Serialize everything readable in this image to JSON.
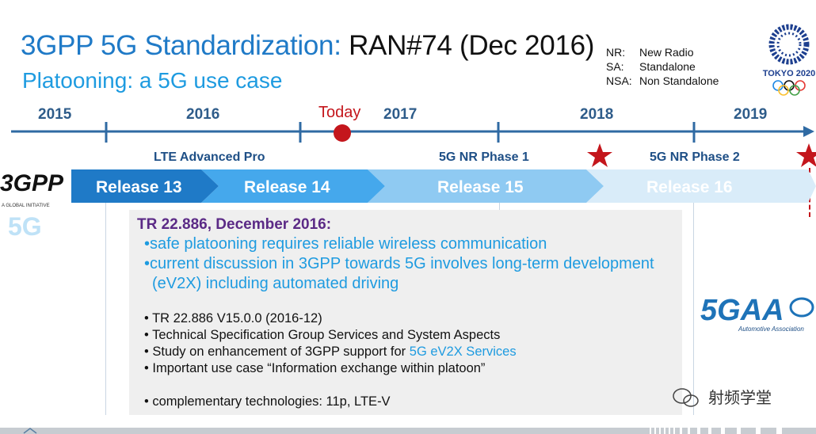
{
  "slide": {
    "title_blue": "3GPP 5G Standardization:",
    "title_black": "RAN#74 (Dec 2016)",
    "subtitle": "Platooning: a 5G use case"
  },
  "abbreviations": [
    {
      "key": "NR:",
      "value": "New Radio"
    },
    {
      "key": "SA:",
      "value": "Standalone"
    },
    {
      "key": "NSA:",
      "value": "Non Standalone"
    }
  ],
  "olympic_logo_text": "TOKYO 2020",
  "timeline": {
    "years": [
      "2015",
      "2016",
      "2017",
      "2018",
      "2019"
    ],
    "today_label": "Today",
    "phases": [
      "LTE Advanced Pro",
      "5G NR Phase 1",
      "5G NR Phase 2"
    ],
    "releases": [
      "Release 13",
      "Release 14",
      "Release 15",
      "Release 16"
    ]
  },
  "logo_3gpp": {
    "main": "3GPP",
    "tagline": "A GLOBAL INITIATIVE",
    "mark": "5G"
  },
  "info": {
    "heading": "TR 22.886, December 2016:",
    "blue_bullets": [
      "•safe platooning requires reliable wireless communication",
      "•current discussion in 3GPP towards 5G involves long-term development",
      "(eV2X) including automated driving"
    ],
    "items": [
      "• TR 22.886 V15.0.0 (2016-12)",
      "• Technical Specification Group Services and System Aspects",
      "• Study on enhancement of 3GPP support for ",
      "• Important use case “Information exchange within platoon”",
      "• complementary technologies: 11p, LTE-V"
    ],
    "highlight": "5G eV2X Services"
  },
  "logo_5gaa": {
    "main": "5GAA",
    "sub": "Automotive Association"
  },
  "watermark": "射频学堂",
  "colors": {
    "title_blue": "#1f7ac7",
    "accent_red": "#c4161c",
    "release_dark": "#1f7ac7",
    "info_bg": "#efefef"
  }
}
